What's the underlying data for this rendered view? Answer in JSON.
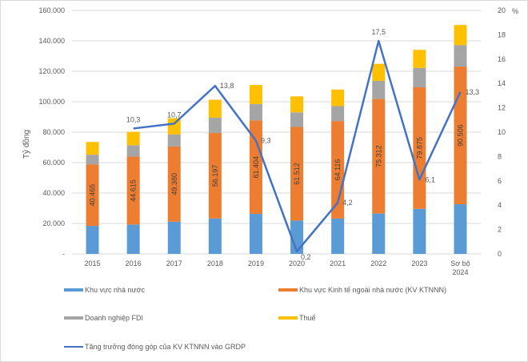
{
  "chart_data": {
    "type": "bar",
    "subtype": "stacked-bar-with-line",
    "title": "",
    "categories": [
      "2015",
      "2016",
      "2017",
      "2018",
      "2019",
      "2020",
      "2021",
      "2022",
      "2023",
      "Sơ bộ 2024"
    ],
    "category_lines": [
      [
        "2015"
      ],
      [
        "2016"
      ],
      [
        "2017"
      ],
      [
        "2018"
      ],
      [
        "2019"
      ],
      [
        "2020"
      ],
      [
        "2021"
      ],
      [
        "2022"
      ],
      [
        "2023"
      ],
      [
        "Sơ bộ",
        "2024"
      ]
    ],
    "series": [
      {
        "name": "Khu vực nhà nước",
        "type": "bar",
        "axis": "left",
        "color": "#5B9BD5",
        "values": [
          18.4,
          19.3,
          21.2,
          23.3,
          26.3,
          21.9,
          23.2,
          26.5,
          29.6,
          32.6
        ]
      },
      {
        "name": "Khu vực Kinh tế ngoài nhà nước (KV KTNNN)",
        "type": "bar",
        "axis": "left",
        "color": "#ED7D31",
        "values": [
          40.465,
          44.615,
          49.38,
          56.197,
          61.404,
          61.512,
          64.116,
          75.312,
          79.875,
          90.506
        ],
        "labels": [
          "40.465",
          "44.615",
          "49.380",
          "56.197",
          "61.404",
          "61.512",
          "64.116",
          "75.312",
          "79.875",
          "90.506"
        ]
      },
      {
        "name": "Doanh nghiệp FDI",
        "type": "bar",
        "axis": "left",
        "color": "#A5A5A5",
        "values": [
          6.3,
          7.5,
          7.9,
          10.0,
          10.7,
          9.6,
          9.8,
          11.9,
          12.7,
          14.1
        ]
      },
      {
        "name": "Thuế",
        "type": "bar",
        "axis": "left",
        "color": "#FFC000",
        "values": [
          8.4,
          8.8,
          10.7,
          11.8,
          12.6,
          10.5,
          10.9,
          11.2,
          11.9,
          13.2
        ]
      },
      {
        "name": "Tăng trưởng đóng góp của KV KTNNN vào GRDP",
        "type": "line",
        "axis": "right",
        "color": "#4472C4",
        "values": [
          null,
          10.3,
          10.7,
          13.8,
          9.3,
          0.2,
          4.2,
          17.5,
          6.1,
          13.3
        ],
        "labels": [
          "",
          "10,3",
          "10,7",
          "13,8",
          "9,3",
          "0,2",
          "4,2",
          "17,5",
          "6,1",
          "13,3"
        ]
      }
    ],
    "bar_units_note": "bar values in thousand tỷ đồng",
    "ylabel": "Tỷ đồng",
    "ylim": [
      0,
      160000
    ],
    "yticks": [
      "-",
      "20.000",
      "40.000",
      "60.000",
      "80.000",
      "100.000",
      "120.000",
      "140.000",
      "160.000"
    ],
    "y2label": "%",
    "y2lim": [
      0,
      20
    ],
    "y2ticks": [
      "0",
      "2",
      "4",
      "6",
      "8",
      "10",
      "12",
      "14",
      "16",
      "18",
      "20"
    ],
    "grid": true,
    "legend": "bottom"
  }
}
